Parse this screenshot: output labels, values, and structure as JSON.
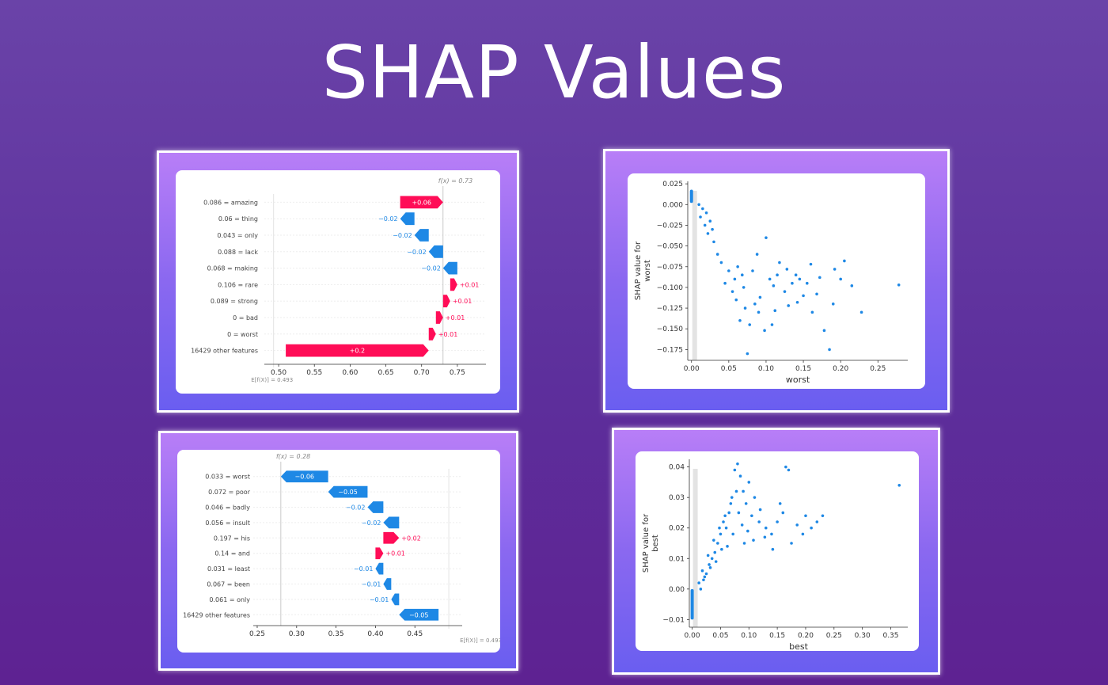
{
  "title": "SHAP Values",
  "chart_data": [
    {
      "type": "waterfall",
      "fx_label": "f(x) = 0.73",
      "ex_label": "E[f(X)] = 0.493",
      "base_value": 0.493,
      "output_value": 0.73,
      "xlim": [
        0.48,
        0.79
      ],
      "xticks": [
        0.5,
        0.55,
        0.6,
        0.65,
        0.7,
        0.75
      ],
      "xtick_labels": [
        "0.50",
        "0.55",
        "0.60",
        "0.65",
        "0.70",
        "0.75"
      ],
      "features": [
        {
          "label": "0.086 = amazing",
          "value": 0.06,
          "text": "+0.06"
        },
        {
          "label": "0.06 = thing",
          "value": -0.02,
          "text": "−0.02"
        },
        {
          "label": "0.043 = only",
          "value": -0.02,
          "text": "−0.02"
        },
        {
          "label": "0.088 = lack",
          "value": -0.02,
          "text": "−0.02"
        },
        {
          "label": "0.068 = making",
          "value": -0.02,
          "text": "−0.02"
        },
        {
          "label": "0.106 = rare",
          "value": 0.01,
          "text": "+0.01"
        },
        {
          "label": "0.089 = strong",
          "value": 0.01,
          "text": "+0.01"
        },
        {
          "label": "0 = bad",
          "value": 0.01,
          "text": "+0.01"
        },
        {
          "label": "0 = worst",
          "value": 0.01,
          "text": "+0.01"
        },
        {
          "label": "16429 other features",
          "value": 0.2,
          "text": "+0.2"
        }
      ],
      "colors": {
        "positive": "#ff0d57",
        "negative": "#1e88e5"
      }
    },
    {
      "type": "scatter",
      "xlabel": "worst",
      "ylabel": "SHAP value for\nworst",
      "ylabel_lines": [
        "SHAP value for",
        "worst"
      ],
      "xlim": [
        -0.005,
        0.29
      ],
      "ylim": [
        -0.188,
        0.028
      ],
      "xticks": [
        0.0,
        0.05,
        0.1,
        0.15,
        0.2,
        0.25
      ],
      "xtick_labels": [
        "0.00",
        "0.05",
        "0.10",
        "0.15",
        "0.20",
        "0.25"
      ],
      "yticks": [
        0.025,
        0.0,
        -0.025,
        -0.05,
        -0.075,
        -0.1,
        -0.125,
        -0.15,
        -0.175
      ],
      "ytick_labels": [
        "0.025",
        "0.000",
        "−0.025",
        "−0.050",
        "−0.075",
        "−0.100",
        "−0.125",
        "−0.150",
        "−0.175"
      ],
      "cluster": {
        "x": 0.0,
        "y_range": [
          0.002,
          0.018
        ]
      },
      "points": [
        [
          0.278,
          -0.097
        ],
        [
          0.228,
          -0.13
        ],
        [
          0.2,
          -0.09
        ],
        [
          0.19,
          -0.12
        ],
        [
          0.185,
          -0.175
        ],
        [
          0.178,
          -0.152
        ],
        [
          0.162,
          -0.13
        ],
        [
          0.16,
          -0.072
        ],
        [
          0.155,
          -0.095
        ],
        [
          0.15,
          -0.11
        ],
        [
          0.145,
          -0.09
        ],
        [
          0.14,
          -0.085
        ],
        [
          0.135,
          -0.095
        ],
        [
          0.13,
          -0.122
        ],
        [
          0.125,
          -0.105
        ],
        [
          0.118,
          -0.07
        ],
        [
          0.115,
          -0.085
        ],
        [
          0.11,
          -0.098
        ],
        [
          0.105,
          -0.09
        ],
        [
          0.1,
          -0.04
        ],
        [
          0.098,
          -0.152
        ],
        [
          0.09,
          -0.13
        ],
        [
          0.085,
          -0.12
        ],
        [
          0.082,
          -0.08
        ],
        [
          0.078,
          -0.145
        ],
        [
          0.075,
          -0.18
        ],
        [
          0.07,
          -0.1
        ],
        [
          0.065,
          -0.14
        ],
        [
          0.06,
          -0.115
        ],
        [
          0.058,
          -0.09
        ],
        [
          0.055,
          -0.105
        ],
        [
          0.05,
          -0.08
        ],
        [
          0.045,
          -0.095
        ],
        [
          0.04,
          -0.07
        ],
        [
          0.035,
          -0.06
        ],
        [
          0.03,
          -0.045
        ],
        [
          0.028,
          -0.03
        ],
        [
          0.025,
          -0.02
        ],
        [
          0.022,
          -0.035
        ],
        [
          0.02,
          -0.01
        ],
        [
          0.018,
          -0.025
        ],
        [
          0.015,
          -0.005
        ],
        [
          0.012,
          -0.015
        ],
        [
          0.01,
          0.0
        ],
        [
          0.215,
          -0.098
        ],
        [
          0.205,
          -0.068
        ],
        [
          0.172,
          -0.088
        ],
        [
          0.168,
          -0.108
        ],
        [
          0.192,
          -0.078
        ],
        [
          0.142,
          -0.118
        ],
        [
          0.128,
          -0.078
        ],
        [
          0.112,
          -0.128
        ],
        [
          0.108,
          -0.145
        ],
        [
          0.092,
          -0.112
        ],
        [
          0.088,
          -0.06
        ],
        [
          0.072,
          -0.125
        ],
        [
          0.068,
          -0.085
        ],
        [
          0.062,
          -0.075
        ]
      ],
      "color": "#1e88e5"
    },
    {
      "type": "waterfall",
      "fx_label": "f(x) = 0.28",
      "ex_label": "E[f(X)] = 0.493",
      "base_value": 0.493,
      "output_value": 0.28,
      "xlim": [
        0.245,
        0.51
      ],
      "xticks": [
        0.25,
        0.3,
        0.35,
        0.4,
        0.45
      ],
      "xtick_labels": [
        "0.25",
        "0.30",
        "0.35",
        "0.40",
        "0.45"
      ],
      "features": [
        {
          "label": "0.033 = worst",
          "value": -0.06,
          "text": "−0.06"
        },
        {
          "label": "0.072 = poor",
          "value": -0.05,
          "text": "−0.05"
        },
        {
          "label": "0.046 = badly",
          "value": -0.02,
          "text": "−0.02"
        },
        {
          "label": "0.056 = insult",
          "value": -0.02,
          "text": "−0.02"
        },
        {
          "label": "0.197 = his",
          "value": 0.02,
          "text": "+0.02"
        },
        {
          "label": "0.14 = and",
          "value": 0.01,
          "text": "+0.01"
        },
        {
          "label": "0.031 = least",
          "value": -0.01,
          "text": "−0.01"
        },
        {
          "label": "0.067 = been",
          "value": -0.01,
          "text": "−0.01"
        },
        {
          "label": "0.061 = only",
          "value": -0.01,
          "text": "−0.01"
        },
        {
          "label": "16429 other features",
          "value": -0.05,
          "text": "−0.05"
        }
      ],
      "colors": {
        "positive": "#ff0d57",
        "negative": "#1e88e5"
      }
    },
    {
      "type": "scatter",
      "xlabel": "best",
      "ylabel": "SHAP value for\nbest",
      "ylabel_lines": [
        "SHAP value for",
        "best"
      ],
      "xlim": [
        -0.005,
        0.38
      ],
      "ylim": [
        -0.0125,
        0.0425
      ],
      "xticks": [
        0.0,
        0.05,
        0.1,
        0.15,
        0.2,
        0.25,
        0.3,
        0.35
      ],
      "xtick_labels": [
        "0.00",
        "0.05",
        "0.10",
        "0.15",
        "0.20",
        "0.25",
        "0.30",
        "0.35"
      ],
      "yticks": [
        0.04,
        0.03,
        0.02,
        0.01,
        0.0,
        -0.01
      ],
      "ytick_labels": [
        "0.04",
        "0.03",
        "0.02",
        "0.01",
        "0.00",
        "−0.01"
      ],
      "cluster": {
        "x": 0.0,
        "y_range": [
          -0.01,
          0.0
        ]
      },
      "points": [
        [
          0.365,
          0.034
        ],
        [
          0.23,
          0.024
        ],
        [
          0.22,
          0.022
        ],
        [
          0.21,
          0.02
        ],
        [
          0.195,
          0.018
        ],
        [
          0.17,
          0.039
        ],
        [
          0.165,
          0.04
        ],
        [
          0.16,
          0.025
        ],
        [
          0.15,
          0.022
        ],
        [
          0.14,
          0.018
        ],
        [
          0.13,
          0.02
        ],
        [
          0.12,
          0.026
        ],
        [
          0.11,
          0.03
        ],
        [
          0.105,
          0.024
        ],
        [
          0.1,
          0.035
        ],
        [
          0.095,
          0.028
        ],
        [
          0.09,
          0.032
        ],
        [
          0.085,
          0.037
        ],
        [
          0.08,
          0.041
        ],
        [
          0.075,
          0.039
        ],
        [
          0.07,
          0.03
        ],
        [
          0.065,
          0.025
        ],
        [
          0.06,
          0.02
        ],
        [
          0.055,
          0.022
        ],
        [
          0.05,
          0.018
        ],
        [
          0.045,
          0.015
        ],
        [
          0.04,
          0.012
        ],
        [
          0.035,
          0.01
        ],
        [
          0.03,
          0.008
        ],
        [
          0.025,
          0.005
        ],
        [
          0.02,
          0.003
        ],
        [
          0.015,
          0.0
        ],
        [
          0.012,
          0.002
        ],
        [
          0.018,
          0.006
        ],
        [
          0.028,
          0.011
        ],
        [
          0.038,
          0.016
        ],
        [
          0.048,
          0.02
        ],
        [
          0.058,
          0.024
        ],
        [
          0.068,
          0.028
        ],
        [
          0.078,
          0.032
        ],
        [
          0.088,
          0.021
        ],
        [
          0.098,
          0.019
        ],
        [
          0.108,
          0.016
        ],
        [
          0.118,
          0.022
        ],
        [
          0.128,
          0.017
        ],
        [
          0.142,
          0.013
        ],
        [
          0.155,
          0.028
        ],
        [
          0.175,
          0.015
        ],
        [
          0.185,
          0.021
        ],
        [
          0.2,
          0.024
        ],
        [
          0.062,
          0.014
        ],
        [
          0.072,
          0.018
        ],
        [
          0.082,
          0.025
        ],
        [
          0.092,
          0.015
        ],
        [
          0.042,
          0.009
        ],
        [
          0.052,
          0.013
        ],
        [
          0.032,
          0.007
        ],
        [
          0.022,
          0.004
        ]
      ],
      "color": "#1e88e5"
    }
  ]
}
